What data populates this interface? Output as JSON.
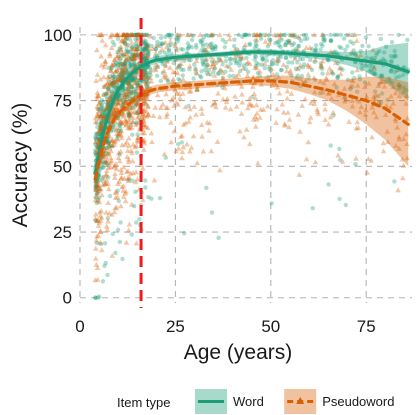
{
  "chart_data": {
    "type": "scatter",
    "xlabel": "Age (years)",
    "ylabel": "Accuracy (%)",
    "xlim": [
      0,
      87
    ],
    "ylim": [
      -2,
      103
    ],
    "x_ticks": [
      0,
      25,
      50,
      75
    ],
    "y_ticks": [
      0,
      25,
      50,
      75,
      100
    ],
    "grid": "dashed",
    "legend_position": "bottom",
    "legend_title": "Item type",
    "reference_line": {
      "x": 16,
      "style": "dashed",
      "color": "#ee1c1c"
    },
    "series": [
      {
        "name": "Word",
        "color": "#1b9e77",
        "marker": "circle",
        "line_style": "solid",
        "x": [
          4,
          5,
          6,
          7,
          8,
          9,
          10,
          12,
          14,
          16,
          18,
          20,
          25,
          30,
          35,
          40,
          45,
          50,
          55,
          60,
          65,
          70,
          75,
          80,
          86
        ],
        "y": [
          47,
          55,
          62,
          68,
          72,
          76,
          79,
          83,
          86,
          88,
          89.5,
          90.5,
          91.5,
          92,
          92.5,
          93,
          93.5,
          93.5,
          93,
          92.5,
          92,
          91,
          90,
          89,
          86
        ],
        "ci_lower": [
          43,
          52,
          60,
          66,
          70,
          74,
          77,
          81,
          84.5,
          86.5,
          88,
          89,
          90.3,
          91,
          91.6,
          92.1,
          92.5,
          92.5,
          91.9,
          91.2,
          90.2,
          88.5,
          86,
          82,
          75
        ],
        "ci_upper": [
          51,
          58,
          64,
          70,
          74,
          78,
          81,
          85,
          87.5,
          89.5,
          91,
          92,
          92.7,
          93,
          93.4,
          93.9,
          94.5,
          94.5,
          94.1,
          93.8,
          93.8,
          93.5,
          94,
          96,
          97
        ]
      },
      {
        "name": "Pseudoword",
        "color": "#d95f02",
        "marker": "triangle",
        "line_style": "dashed",
        "x": [
          4,
          5,
          6,
          7,
          8,
          9,
          10,
          12,
          14,
          16,
          18,
          20,
          25,
          30,
          35,
          40,
          45,
          50,
          55,
          60,
          65,
          70,
          75,
          80,
          86
        ],
        "y": [
          45,
          52,
          58,
          62,
          65,
          68,
          70,
          73,
          75,
          77,
          78.5,
          79.5,
          80.5,
          81,
          81.5,
          82,
          82.5,
          82.5,
          82,
          80.5,
          79,
          77,
          75,
          72,
          66
        ],
        "ci_lower": [
          41,
          49,
          55.5,
          60,
          63,
          66,
          68,
          71,
          73.5,
          75.5,
          77,
          78,
          79,
          79.5,
          80,
          80.5,
          81,
          80.5,
          79.5,
          77.5,
          75,
          71,
          66,
          60,
          50
        ],
        "ci_upper": [
          49,
          55,
          60.5,
          64,
          67,
          70,
          72,
          75,
          76.5,
          78.5,
          80,
          81,
          82,
          82.5,
          83,
          83.5,
          84,
          84.5,
          84.5,
          83.5,
          83,
          83,
          84,
          84,
          82
        ]
      }
    ]
  }
}
